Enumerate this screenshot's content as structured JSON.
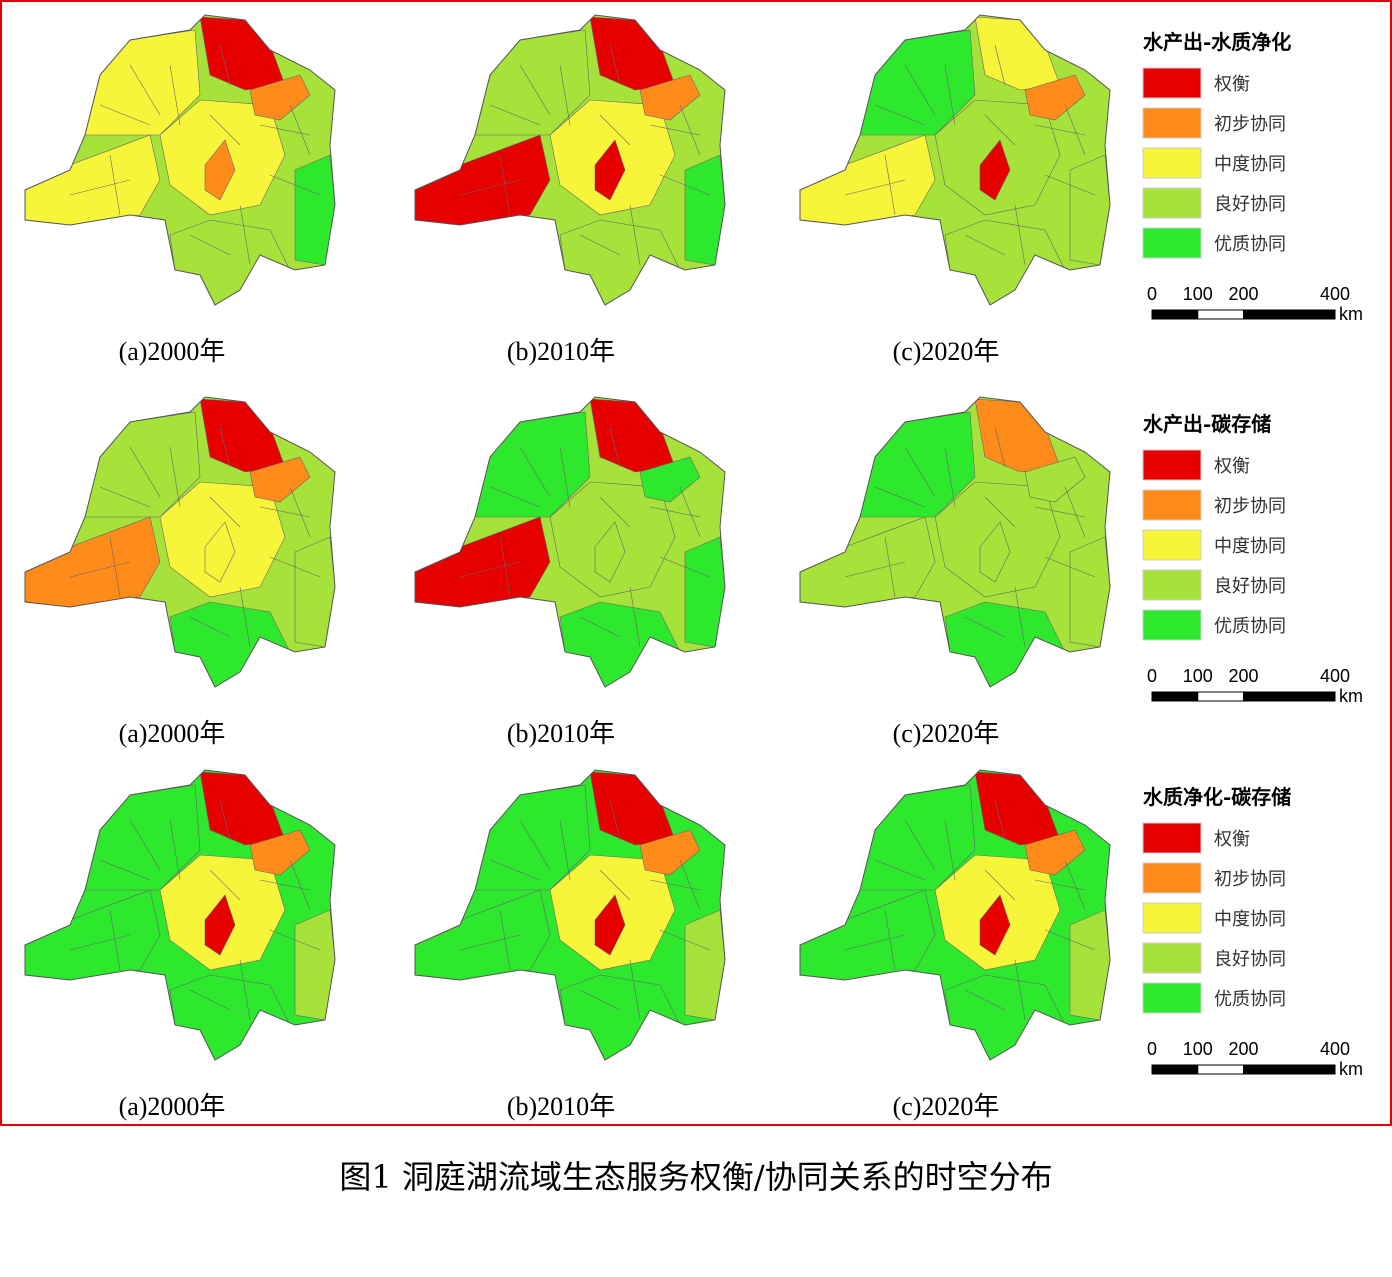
{
  "rows": [
    {
      "legend_title": "水产出-水质净化",
      "panels": [
        "(a)2000年",
        "(b)2010年",
        "(c)2020年"
      ],
      "legend_items": [
        "权衡",
        "初步协同",
        "中度协同",
        "良好协同",
        "优质协同"
      ],
      "scale": [
        0,
        100,
        200,
        400
      ],
      "scale_unit": "km"
    },
    {
      "legend_title": "水产出-碳存储",
      "panels": [
        "(a)2000年",
        "(b)2010年",
        "(c)2020年"
      ],
      "legend_items": [
        "权衡",
        "初步协同",
        "中度协同",
        "良好协同",
        "优质协同"
      ],
      "scale": [
        0,
        100,
        200,
        400
      ],
      "scale_unit": "km"
    },
    {
      "legend_title": "水质净化-碳存储",
      "panels": [
        "(a)2000年",
        "(b)2010年",
        "(c)2020年"
      ],
      "legend_items": [
        "权衡",
        "初步协同",
        "中度协同",
        "良好协同",
        "优质协同"
      ],
      "scale": [
        0,
        100,
        200,
        400
      ],
      "scale_unit": "km"
    }
  ],
  "legend_colors": [
    "#e60000",
    "#ff8c1a",
    "#f7f53a",
    "#a6e23a",
    "#2ee82e"
  ],
  "caption": "图1 洞庭湖流域生态服务权衡/协同关系的时空分布"
}
